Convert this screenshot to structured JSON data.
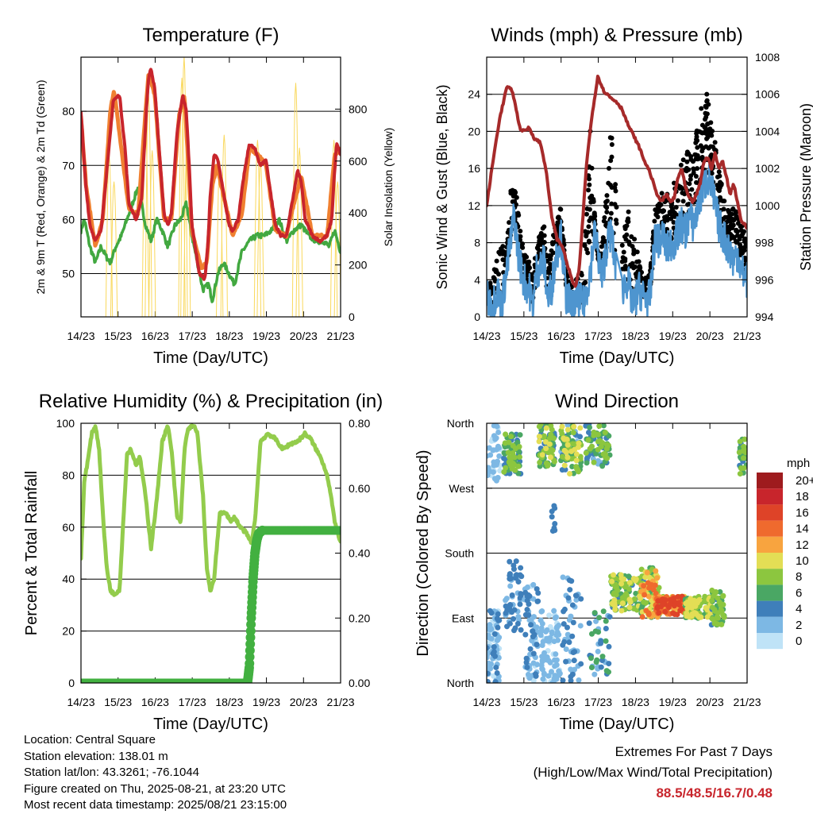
{
  "time_ticks": [
    "14/23",
    "15/23",
    "16/23",
    "17/23",
    "18/23",
    "19/23",
    "20/23",
    "21/23"
  ],
  "chart_data": [
    {
      "type": "line",
      "title": "Temperature (F)",
      "xlabel": "Time (Day/UTC)",
      "ylabel": "2m & 9m T (Red, Orange) & 2m Td (Green)",
      "y2label": "Solar Insolation (Yellow)",
      "x_range_days": [
        14.96,
        21.96
      ],
      "ylim": [
        42,
        90
      ],
      "yticks": [
        50,
        60,
        70,
        80
      ],
      "y2lim": [
        0,
        1000
      ],
      "y2ticks": [
        0,
        200,
        400,
        600,
        800
      ],
      "grid": true,
      "series": [
        {
          "color": "#c8252c",
          "t": [
            14.96,
            15.08,
            15.2,
            15.35,
            15.5,
            15.7,
            15.83,
            16.0,
            16.15,
            16.25,
            16.45,
            16.6,
            16.72,
            16.78,
            16.85,
            16.95,
            17.1,
            17.2,
            17.3,
            17.4,
            17.55,
            17.7,
            17.8,
            17.9,
            17.95,
            18.15,
            18.3,
            18.38,
            18.45,
            18.55,
            18.65,
            18.8,
            18.95,
            19.05,
            19.2,
            19.35,
            19.5,
            19.65,
            19.8,
            19.95,
            20.05,
            20.2,
            20.35,
            20.5,
            20.65,
            20.8,
            20.9,
            21.0,
            21.2,
            21.4,
            21.6,
            21.72,
            21.78,
            21.85,
            21.96
          ],
          "y": [
            80,
            67,
            59,
            56,
            58,
            72,
            82,
            83,
            73,
            63,
            60,
            64,
            80,
            86,
            88,
            84,
            70,
            61,
            59,
            61,
            76,
            83,
            80,
            67,
            59,
            50,
            49,
            55,
            65,
            72,
            71,
            65,
            59,
            58,
            60,
            68,
            74,
            73,
            70,
            71,
            66,
            59,
            57,
            57,
            63,
            69,
            67,
            60,
            57,
            56,
            57,
            60,
            67,
            74,
            72
          ]
        },
        {
          "color": "#f08030",
          "t": [
            14.96,
            15.1,
            15.35,
            15.55,
            15.75,
            15.85,
            16.05,
            16.25,
            16.5,
            16.7,
            16.78,
            16.95,
            17.2,
            17.4,
            17.6,
            17.75,
            17.95,
            18.2,
            18.35,
            18.5,
            18.62,
            18.85,
            19.05,
            19.3,
            19.5,
            19.75,
            19.95,
            20.2,
            20.5,
            20.7,
            20.9,
            21.2,
            21.6,
            21.8,
            21.96
          ],
          "y": [
            79,
            66,
            55,
            60,
            80,
            84,
            73,
            62,
            61,
            80,
            87,
            83,
            60,
            60,
            79,
            83,
            58,
            51,
            52,
            66,
            70,
            63,
            57,
            61,
            73,
            72,
            70,
            58,
            57,
            63,
            68,
            57,
            57,
            72,
            73
          ]
        },
        {
          "color": "#42a840",
          "t": [
            14.96,
            15.05,
            15.2,
            15.35,
            15.5,
            15.65,
            15.75,
            15.9,
            16.05,
            16.2,
            16.35,
            16.5,
            16.7,
            16.85,
            17.0,
            17.15,
            17.3,
            17.5,
            17.65,
            17.8,
            17.95,
            18.1,
            18.25,
            18.4,
            18.5,
            18.65,
            18.8,
            18.95,
            19.1,
            19.3,
            19.5,
            19.7,
            19.9,
            20.1,
            20.3,
            20.5,
            20.7,
            20.9,
            21.1,
            21.3,
            21.5,
            21.65,
            21.8,
            21.96
          ],
          "y": [
            58,
            60,
            55,
            52,
            55,
            53,
            52,
            55,
            57,
            60,
            63,
            66,
            59,
            56,
            60,
            58,
            55,
            59,
            60,
            63,
            57,
            52,
            47,
            48,
            45,
            50,
            52,
            50,
            48,
            54,
            56,
            57,
            57,
            58,
            60,
            56,
            58,
            59,
            57,
            56,
            56,
            55,
            58,
            54
          ]
        }
      ],
      "solar_peaks": [
        {
          "t": 15.72,
          "v": 620
        },
        {
          "t": 15.85,
          "v": 520
        },
        {
          "t": 16.7,
          "v": 750
        },
        {
          "t": 16.78,
          "v": 860
        },
        {
          "t": 16.88,
          "v": 640
        },
        {
          "t": 17.68,
          "v": 920
        },
        {
          "t": 17.74,
          "v": 1000
        },
        {
          "t": 17.82,
          "v": 700
        },
        {
          "t": 18.7,
          "v": 600
        },
        {
          "t": 18.82,
          "v": 700
        },
        {
          "t": 19.72,
          "v": 680
        },
        {
          "t": 19.8,
          "v": 600
        },
        {
          "t": 20.75,
          "v": 900
        },
        {
          "t": 20.85,
          "v": 650
        },
        {
          "t": 21.78,
          "v": 680
        },
        {
          "t": 21.88,
          "v": 520
        }
      ]
    },
    {
      "type": "line",
      "title": "Winds (mph) & Pressure (mb)",
      "xlabel": "Time (Day/UTC)",
      "ylabel": "Sonic Wind & Gust (Blue, Black)",
      "y2label": "Station Pressure (Maroon)",
      "x_range_days": [
        14.96,
        21.96
      ],
      "ylim": [
        0,
        28
      ],
      "yticks": [
        0,
        4,
        8,
        12,
        16,
        20,
        24
      ],
      "y2lim": [
        994,
        1008
      ],
      "y2ticks": [
        994,
        996,
        998,
        1000,
        1002,
        1004,
        1006,
        1008
      ],
      "grid": true,
      "pressure": {
        "color": "#a62a2a",
        "t": [
          14.96,
          15.1,
          15.3,
          15.5,
          15.65,
          15.75,
          15.85,
          15.95,
          16.1,
          16.25,
          16.4,
          16.55,
          16.7,
          16.85,
          17.0,
          17.1,
          17.25,
          17.35,
          17.45,
          17.55,
          17.65,
          17.8,
          17.95,
          18.1,
          18.3,
          18.45,
          18.6,
          18.75,
          18.9,
          19.05,
          19.2,
          19.35,
          19.5,
          19.65,
          19.8,
          19.9,
          20.0,
          20.1,
          20.2,
          20.3,
          20.4,
          20.5,
          20.6,
          20.7,
          20.8,
          20.9,
          21.0,
          21.1,
          21.2,
          21.3,
          21.4,
          21.5,
          21.6,
          21.7,
          21.8,
          21.96
        ],
        "y": [
          1000,
          1002,
          1004.6,
          1006.4,
          1006.2,
          1005.2,
          1004.2,
          1004.0,
          1004.2,
          1003.6,
          1003.4,
          1002.0,
          999.5,
          998.2,
          997.8,
          997.0,
          996.0,
          995.6,
          996.6,
          999.5,
          1002.4,
          1005.0,
          1007.0,
          1006.2,
          1005.8,
          1005.6,
          1005.2,
          1004.4,
          1003.8,
          1003.2,
          1002.4,
          1001.8,
          1000.8,
          1000.2,
          1000.6,
          1000.2,
          1000.4,
          1001.5,
          1002.0,
          1001.0,
          1000.4,
          1000.2,
          1000.6,
          1001.2,
          1002.4,
          1002.6,
          1002.0,
          1002.8,
          1002.0,
          1002.4,
          1001.6,
          1000.6,
          1001.2,
          1000.2,
          999.2,
          998.8
        ]
      },
      "wind": {
        "color": "#4e95cf",
        "t": [
          14.96,
          15.1,
          15.25,
          15.35,
          15.5,
          15.6,
          15.7,
          15.8,
          15.95,
          16.1,
          16.2,
          16.3,
          16.5,
          16.6,
          16.7,
          16.8,
          16.95,
          17.1,
          17.3,
          17.45,
          17.55,
          17.65,
          17.75,
          17.85,
          17.95,
          18.05,
          18.2,
          18.3,
          18.45,
          18.6,
          18.75,
          18.9,
          19.05,
          19.2,
          19.35,
          19.5,
          19.6,
          19.7,
          19.8,
          19.9,
          20.0,
          20.1,
          20.2,
          20.3,
          20.4,
          20.5,
          20.6,
          20.7,
          20.8,
          20.9,
          21.0,
          21.1,
          21.2,
          21.3,
          21.4,
          21.5,
          21.6,
          21.7,
          21.8,
          21.96
        ],
        "y": [
          2,
          1,
          3,
          1,
          5,
          8,
          11,
          7,
          4,
          3,
          1,
          5,
          6,
          2,
          3,
          6,
          9,
          2,
          1,
          2,
          1,
          3,
          5,
          9,
          7,
          4,
          8,
          9,
          5,
          3,
          4,
          1,
          3,
          2,
          2,
          9,
          8,
          9,
          7,
          8,
          8,
          9,
          10,
          9,
          11,
          10,
          11,
          13,
          14,
          15,
          14,
          12,
          10,
          9,
          8,
          7,
          6,
          7,
          5,
          4
        ]
      },
      "gust_max": [
        3,
        4,
        7,
        9,
        8,
        14,
        15,
        12,
        7,
        6,
        4,
        8,
        10,
        6,
        8,
        10,
        12,
        5,
        3,
        6,
        4,
        14,
        21,
        12,
        6,
        8,
        14,
        22,
        13,
        8,
        12,
        10,
        6,
        4,
        5,
        12,
        13,
        14,
        14,
        12,
        15,
        14,
        17,
        17,
        19,
        18,
        20,
        22,
        25,
        24,
        21,
        19,
        16,
        14,
        12,
        11,
        12,
        11,
        10,
        9
      ]
    },
    {
      "type": "line",
      "title": "Relative Humidity (%) & Precipitation (in)",
      "xlabel": "Time (Day/UTC)",
      "ylabel": "Percent & Total Rainfall",
      "x_range_days": [
        14.96,
        21.96
      ],
      "ylim": [
        0,
        100
      ],
      "yticks": [
        0,
        20,
        40,
        60,
        80,
        100
      ],
      "y2lim": [
        0,
        0.8
      ],
      "y2ticks": [
        "0.00",
        "0.20",
        "0.40",
        "0.60",
        "0.80"
      ],
      "grid": true,
      "series": [
        {
          "color": "#93cc4c",
          "t": [
            14.96,
            15.05,
            15.15,
            15.25,
            15.35,
            15.45,
            15.55,
            15.65,
            15.75,
            15.85,
            16.0,
            16.1,
            16.2,
            16.3,
            16.45,
            16.55,
            16.7,
            16.85,
            17.0,
            17.15,
            17.3,
            17.4,
            17.55,
            17.65,
            17.75,
            17.85,
            18.0,
            18.1,
            18.25,
            18.35,
            18.45,
            18.55,
            18.7,
            18.85,
            19.0,
            19.1,
            19.25,
            19.4,
            19.55,
            19.65,
            19.8,
            20.0,
            20.2,
            20.4,
            20.6,
            20.8,
            21.0,
            21.15,
            21.3,
            21.45,
            21.6,
            21.7,
            21.8,
            21.96
          ],
          "y": [
            48,
            78,
            86,
            96,
            99,
            90,
            65,
            45,
            36,
            34,
            36,
            62,
            88,
            90,
            84,
            87,
            72,
            52,
            70,
            93,
            99,
            90,
            64,
            62,
            90,
            98,
            99,
            96,
            72,
            45,
            35,
            40,
            65,
            66,
            62,
            64,
            60,
            58,
            54,
            62,
            93,
            96,
            94,
            90,
            92,
            93,
            96,
            94,
            90,
            86,
            80,
            72,
            62,
            54
          ]
        },
        {
          "color": "#42b040",
          "name_hint": "precip",
          "t": [
            14.96,
            19.45,
            19.5,
            19.55,
            19.6,
            19.65,
            19.7,
            19.75,
            19.85,
            20.0,
            21.0,
            21.96
          ],
          "y": [
            0,
            0,
            0.05,
            0.2,
            0.32,
            0.4,
            0.44,
            0.46,
            0.47,
            0.47,
            0.47,
            0.47
          ]
        }
      ]
    },
    {
      "type": "scatter",
      "title": "Wind Direction",
      "xlabel": "Time (Day/UTC)",
      "ylabel": "Direction (Colored By Speed)",
      "x_range_days": [
        14.96,
        21.96
      ],
      "ylim": [
        0,
        360
      ],
      "yticks": [
        "North",
        "East",
        "South",
        "West",
        "North"
      ],
      "ytick_values": [
        0,
        90,
        180,
        270,
        360
      ],
      "grid": true,
      "colorbar": {
        "title": "mph",
        "labels": [
          "20+",
          "18",
          "16",
          "14",
          "12",
          "10",
          "8",
          "6",
          "4",
          "2",
          "0"
        ],
        "colors": [
          "#9e1b1e",
          "#c8252c",
          "#de4328",
          "#ef6a2e",
          "#f8a43f",
          "#e3de55",
          "#8cc63f",
          "#4aa764",
          "#3f7fba",
          "#7db8e4",
          "#bfe3f7"
        ]
      },
      "clusters": [
        {
          "t0": 14.96,
          "t1": 15.3,
          "dmin": 0,
          "dmax": 100,
          "smin": 0,
          "smax": 4,
          "n": 90
        },
        {
          "t0": 14.96,
          "t1": 15.35,
          "dmin": 280,
          "dmax": 360,
          "smin": 0,
          "smax": 3,
          "n": 40
        },
        {
          "t0": 15.4,
          "t1": 15.9,
          "dmin": 290,
          "dmax": 345,
          "smin": 3,
          "smax": 9,
          "n": 70
        },
        {
          "t0": 15.45,
          "t1": 15.9,
          "dmin": 70,
          "dmax": 170,
          "smin": 2,
          "smax": 5,
          "n": 50
        },
        {
          "t0": 15.95,
          "t1": 16.35,
          "dmin": 0,
          "dmax": 140,
          "smin": 0,
          "smax": 4,
          "n": 70
        },
        {
          "t0": 16.35,
          "t1": 16.8,
          "dmin": 300,
          "dmax": 360,
          "smin": 3,
          "smax": 10,
          "n": 80
        },
        {
          "t0": 16.4,
          "t1": 16.95,
          "dmin": 0,
          "dmax": 100,
          "smin": 0,
          "smax": 3,
          "n": 80
        },
        {
          "t0": 16.7,
          "t1": 16.8,
          "dmin": 200,
          "dmax": 250,
          "smin": 3,
          "smax": 5,
          "n": 8
        },
        {
          "t0": 16.95,
          "t1": 17.5,
          "dmin": 290,
          "dmax": 360,
          "smin": 2,
          "smax": 11,
          "n": 90
        },
        {
          "t0": 17.0,
          "t1": 17.5,
          "dmin": 0,
          "dmax": 150,
          "smin": 1,
          "smax": 5,
          "n": 50
        },
        {
          "t0": 17.6,
          "t1": 18.3,
          "dmin": 300,
          "dmax": 360,
          "smin": 2,
          "smax": 9,
          "n": 80
        },
        {
          "t0": 17.7,
          "t1": 18.3,
          "dmin": 10,
          "dmax": 100,
          "smin": 2,
          "smax": 7,
          "n": 40
        },
        {
          "t0": 18.3,
          "t1": 19.2,
          "dmin": 100,
          "dmax": 150,
          "smin": 4,
          "smax": 10,
          "n": 120
        },
        {
          "t0": 19.1,
          "t1": 19.6,
          "dmin": 90,
          "dmax": 160,
          "smin": 6,
          "smax": 14,
          "n": 110
        },
        {
          "t0": 19.5,
          "t1": 20.3,
          "dmin": 95,
          "dmax": 120,
          "smin": 8,
          "smax": 17,
          "n": 150
        },
        {
          "t0": 20.3,
          "t1": 21.0,
          "dmin": 90,
          "dmax": 120,
          "smin": 5,
          "smax": 11,
          "n": 120
        },
        {
          "t0": 21.0,
          "t1": 21.35,
          "dmin": 80,
          "dmax": 130,
          "smin": 4,
          "smax": 9,
          "n": 60
        },
        {
          "t0": 21.75,
          "t1": 21.96,
          "dmin": 290,
          "dmax": 340,
          "smin": 3,
          "smax": 9,
          "n": 30
        }
      ]
    }
  ],
  "info": {
    "location": "Location: Central Square",
    "elevation": "Station elevation: 138.01 m",
    "latlon": "Station lat/lon: 43.3261; -76.1044",
    "created": "Figure created on Thu, 2025-08-21, at 23:20 UTC",
    "recent": "Most recent data timestamp: 2025/08/21 23:15:00"
  },
  "extremes": {
    "title": "Extremes For Past 7 Days",
    "subtitle": "(High/Low/Max Wind/Total Precipitation)",
    "values": "88.5/48.5/16.7/0.48"
  },
  "colors": {
    "solar": "#f9d85c",
    "grid": "#000000"
  }
}
